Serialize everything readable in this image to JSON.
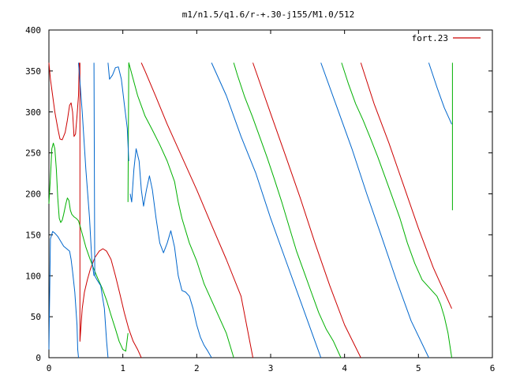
{
  "chart_data": {
    "type": "line",
    "title": "m1/n1.5/q1.6/r-+.30-j155/M1.0/512",
    "xlim": [
      0,
      6
    ],
    "ylim": [
      0,
      400
    ],
    "xticks": [
      0,
      1,
      2,
      3,
      4,
      5,
      6
    ],
    "yticks": [
      0,
      50,
      100,
      150,
      200,
      250,
      300,
      350,
      400
    ],
    "xtick_labels": [
      "0",
      "1",
      "2",
      "3",
      "4",
      "5",
      "6"
    ],
    "ytick_labels": [
      "0",
      "50",
      "100",
      "150",
      "200",
      "250",
      "300",
      "350",
      "400"
    ],
    "grid": false,
    "legend": {
      "position": "top-right",
      "entries": [
        {
          "label": "fort.23",
          "color": "#cc0000"
        }
      ]
    },
    "series": [
      {
        "name": "fort.23",
        "color": "#cc0000",
        "points": [
          [
            0.0,
            360
          ],
          [
            0.02,
            340
          ],
          [
            0.05,
            320
          ],
          [
            0.08,
            300
          ],
          [
            0.12,
            280
          ],
          [
            0.15,
            267
          ],
          [
            0.18,
            266
          ],
          [
            0.22,
            275
          ],
          [
            0.25,
            290
          ],
          [
            0.28,
            308
          ],
          [
            0.3,
            311
          ],
          [
            0.32,
            300
          ],
          [
            0.34,
            270
          ],
          [
            0.36,
            273
          ],
          [
            0.38,
            295
          ],
          [
            0.4,
            320
          ],
          [
            0.41,
            360
          ],
          null,
          [
            0.42,
            360
          ],
          [
            0.42,
            20
          ],
          [
            0.45,
            60
          ],
          [
            0.48,
            80
          ],
          [
            0.52,
            95
          ],
          [
            0.56,
            108
          ],
          [
            0.62,
            122
          ],
          [
            0.68,
            130
          ],
          [
            0.73,
            133
          ],
          [
            0.78,
            130
          ],
          [
            0.84,
            120
          ],
          [
            0.9,
            100
          ],
          [
            0.96,
            78
          ],
          [
            1.02,
            55
          ],
          [
            1.08,
            35
          ],
          [
            1.14,
            20
          ],
          [
            1.2,
            10
          ],
          [
            1.25,
            0
          ],
          null,
          [
            1.25,
            360
          ],
          [
            1.3,
            350
          ],
          [
            1.45,
            318
          ],
          [
            1.6,
            285
          ],
          [
            1.8,
            245
          ],
          [
            2.0,
            205
          ],
          [
            2.2,
            162
          ],
          [
            2.4,
            120
          ],
          [
            2.6,
            75
          ],
          [
            2.76,
            0
          ],
          null,
          [
            2.76,
            360
          ],
          [
            3.0,
            298
          ],
          [
            3.2,
            247
          ],
          [
            3.4,
            195
          ],
          [
            3.6,
            140
          ],
          [
            3.8,
            88
          ],
          [
            4.0,
            40
          ],
          [
            4.22,
            0
          ],
          null,
          [
            4.22,
            360
          ],
          [
            4.4,
            310
          ],
          [
            4.6,
            262
          ],
          [
            4.8,
            210
          ],
          [
            5.0,
            158
          ],
          [
            5.2,
            110
          ],
          [
            5.45,
            60
          ]
        ]
      },
      {
        "name": "",
        "color": "#00b000",
        "points": [
          [
            0.0,
            188
          ],
          [
            0.02,
            220
          ],
          [
            0.04,
            255
          ],
          [
            0.06,
            262
          ],
          [
            0.08,
            255
          ],
          [
            0.1,
            230
          ],
          [
            0.12,
            195
          ],
          [
            0.14,
            170
          ],
          [
            0.16,
            165
          ],
          [
            0.18,
            168
          ],
          [
            0.2,
            175
          ],
          [
            0.23,
            188
          ],
          [
            0.25,
            195
          ],
          [
            0.27,
            192
          ],
          [
            0.29,
            180
          ],
          [
            0.31,
            175
          ],
          [
            0.34,
            172
          ],
          [
            0.37,
            170
          ],
          [
            0.4,
            167
          ],
          [
            0.43,
            158
          ],
          [
            0.46,
            148
          ],
          [
            0.5,
            135
          ],
          [
            0.55,
            122
          ],
          [
            0.6,
            110
          ],
          [
            0.66,
            97
          ],
          [
            0.72,
            85
          ],
          [
            0.78,
            70
          ],
          [
            0.84,
            52
          ],
          [
            0.9,
            35
          ],
          [
            0.95,
            20
          ],
          [
            1.0,
            10
          ],
          [
            1.04,
            8
          ],
          [
            1.07,
            30
          ],
          null,
          [
            1.07,
            190
          ],
          [
            1.08,
            360
          ],
          [
            1.14,
            340
          ],
          [
            1.2,
            320
          ],
          [
            1.3,
            295
          ],
          [
            1.4,
            278
          ],
          [
            1.5,
            260
          ],
          [
            1.6,
            240
          ],
          [
            1.7,
            215
          ],
          [
            1.75,
            190
          ],
          [
            1.8,
            170
          ],
          [
            1.9,
            140
          ],
          [
            2.0,
            118
          ],
          [
            2.1,
            90
          ],
          [
            2.2,
            70
          ],
          [
            2.3,
            50
          ],
          [
            2.4,
            30
          ],
          [
            2.45,
            15
          ],
          [
            2.5,
            0
          ],
          null,
          [
            2.5,
            360
          ],
          [
            2.55,
            345
          ],
          [
            2.65,
            318
          ],
          [
            2.75,
            295
          ],
          [
            2.85,
            270
          ],
          [
            2.95,
            245
          ],
          [
            3.05,
            218
          ],
          [
            3.15,
            190
          ],
          [
            3.25,
            160
          ],
          [
            3.35,
            130
          ],
          [
            3.45,
            105
          ],
          [
            3.55,
            80
          ],
          [
            3.65,
            55
          ],
          [
            3.75,
            35
          ],
          [
            3.85,
            20
          ],
          [
            3.95,
            0
          ],
          null,
          [
            3.96,
            360
          ],
          [
            4.05,
            335
          ],
          [
            4.15,
            310
          ],
          [
            4.25,
            290
          ],
          [
            4.35,
            268
          ],
          [
            4.45,
            245
          ],
          [
            4.55,
            220
          ],
          [
            4.65,
            195
          ],
          [
            4.75,
            170
          ],
          [
            4.85,
            140
          ],
          [
            4.95,
            115
          ],
          [
            5.05,
            95
          ],
          [
            5.15,
            85
          ],
          [
            5.25,
            75
          ],
          [
            5.3,
            65
          ],
          [
            5.35,
            50
          ],
          [
            5.4,
            30
          ],
          [
            5.45,
            0
          ],
          null,
          [
            5.46,
            360
          ],
          [
            5.46,
            180
          ]
        ]
      },
      {
        "name": "",
        "color": "#0066cc",
        "points": [
          [
            0.0,
            10
          ],
          [
            0.02,
            145
          ],
          [
            0.05,
            154
          ],
          [
            0.08,
            152
          ],
          [
            0.12,
            148
          ],
          [
            0.16,
            142
          ],
          [
            0.2,
            136
          ],
          [
            0.24,
            133
          ],
          [
            0.28,
            130
          ],
          [
            0.3,
            120
          ],
          [
            0.32,
            105
          ],
          [
            0.35,
            80
          ],
          [
            0.38,
            40
          ],
          [
            0.39,
            10
          ],
          [
            0.4,
            0
          ],
          null,
          [
            0.4,
            360
          ],
          [
            0.45,
            300
          ],
          [
            0.5,
            230
          ],
          [
            0.55,
            170
          ],
          [
            0.58,
            120
          ],
          [
            0.61,
            100
          ],
          null,
          [
            0.61,
            360
          ],
          [
            0.62,
            100
          ],
          [
            0.65,
            95
          ],
          [
            0.7,
            88
          ],
          [
            0.75,
            60
          ],
          [
            0.78,
            20
          ],
          [
            0.8,
            0
          ],
          null,
          [
            0.8,
            360
          ],
          [
            0.82,
            340
          ],
          [
            0.86,
            345
          ],
          [
            0.9,
            354
          ],
          [
            0.94,
            355
          ],
          [
            0.98,
            340
          ],
          [
            1.02,
            310
          ],
          [
            1.06,
            280
          ],
          [
            1.08,
            240
          ],
          null,
          [
            1.1,
            200
          ],
          [
            1.12,
            190
          ],
          [
            1.15,
            230
          ],
          [
            1.18,
            255
          ],
          [
            1.22,
            240
          ],
          [
            1.25,
            205
          ],
          [
            1.28,
            185
          ],
          [
            1.32,
            205
          ],
          [
            1.36,
            222
          ],
          [
            1.4,
            205
          ],
          [
            1.45,
            170
          ],
          [
            1.5,
            140
          ],
          [
            1.55,
            128
          ],
          [
            1.6,
            140
          ],
          [
            1.65,
            155
          ],
          [
            1.7,
            135
          ],
          [
            1.75,
            100
          ],
          [
            1.8,
            82
          ],
          [
            1.85,
            80
          ],
          [
            1.9,
            75
          ],
          [
            1.95,
            60
          ],
          [
            2.0,
            40
          ],
          [
            2.05,
            25
          ],
          [
            2.1,
            15
          ],
          [
            2.15,
            8
          ],
          [
            2.2,
            0
          ],
          null,
          [
            2.2,
            360
          ],
          [
            2.4,
            320
          ],
          [
            2.6,
            270
          ],
          [
            2.8,
            225
          ],
          [
            3.0,
            170
          ],
          [
            3.2,
            120
          ],
          [
            3.4,
            70
          ],
          [
            3.6,
            20
          ],
          [
            3.68,
            0
          ],
          null,
          [
            3.68,
            360
          ],
          [
            3.9,
            305
          ],
          [
            4.1,
            255
          ],
          [
            4.3,
            200
          ],
          [
            4.5,
            148
          ],
          [
            4.7,
            95
          ],
          [
            4.9,
            45
          ],
          [
            5.14,
            0
          ],
          null,
          [
            5.14,
            360
          ],
          [
            5.25,
            330
          ],
          [
            5.35,
            305
          ],
          [
            5.45,
            285
          ]
        ]
      }
    ]
  }
}
